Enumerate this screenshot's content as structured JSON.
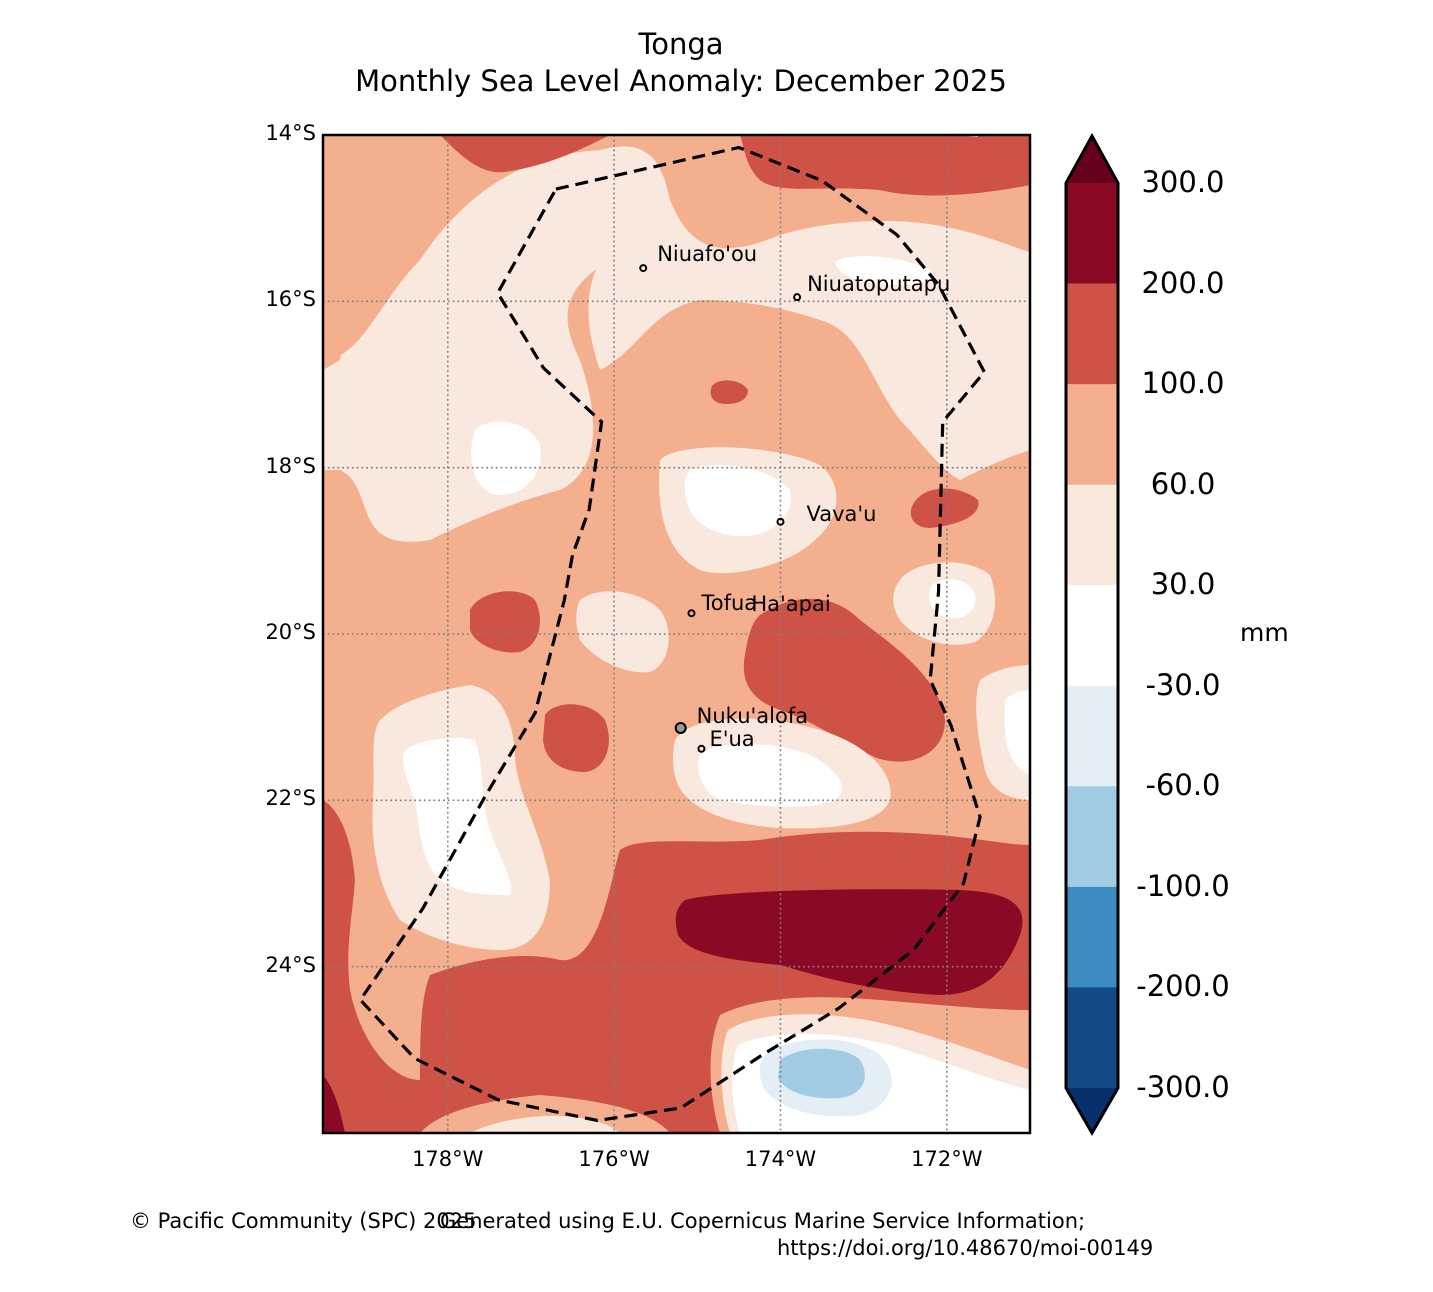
{
  "title": {
    "line1": "Tonga",
    "line2": "Monthly Sea Level Anomaly: December 2025"
  },
  "chart_data": {
    "type": "heatmap",
    "subtype": "filled-contour-map",
    "title": "Tonga — Monthly Sea Level Anomaly: December 2025",
    "extent": {
      "lon": [
        -179.5,
        -171.0
      ],
      "lat": [
        -26.0,
        -14.0
      ]
    },
    "x_ticks": [
      {
        "lon": -178,
        "label": "178°W"
      },
      {
        "lon": -176,
        "label": "176°W"
      },
      {
        "lon": -174,
        "label": "174°W"
      },
      {
        "lon": -172,
        "label": "172°W"
      }
    ],
    "y_ticks": [
      {
        "lat": -14,
        "label": "14°S"
      },
      {
        "lat": -16,
        "label": "16°S"
      },
      {
        "lat": -18,
        "label": "18°S"
      },
      {
        "lat": -20,
        "label": "20°S"
      },
      {
        "lat": -22,
        "label": "22°S"
      },
      {
        "lat": -24,
        "label": "24°S"
      }
    ],
    "gridlines": true,
    "colorbar": {
      "unit": "mm",
      "extend": "both",
      "levels": [
        -300,
        -200,
        -100,
        -60,
        -30,
        30,
        60,
        100,
        200,
        300
      ],
      "tick_labels": [
        "-300.0",
        "-200.0",
        "-100.0",
        "-60.0",
        "-30.0",
        "30.0",
        "60.0",
        "100.0",
        "200.0",
        "300.0"
      ],
      "colors": {
        "under": "#08306b",
        "bins": [
          "#144a85",
          "#3d8bc1",
          "#a0cbe2",
          "#e5eef5",
          "#ffffff",
          "#f9e8de",
          "#f4af8f",
          "#cf5246",
          "#8a0a25"
        ],
        "over": "#67001f"
      }
    },
    "regions": [
      {
        "level": "60-100",
        "desc": "background across most of domain"
      },
      {
        "level": "30-60",
        "desc": "broad band across north (15-17.5°S) and west"
      },
      {
        "level": "100-200",
        "desc": "top edge band (north of 15°S)"
      },
      {
        "level": "100-200",
        "desc": "small patch near 17.4°S 174.5°W"
      },
      {
        "level": "-30-30",
        "desc": "patch near 18°S 178°W"
      },
      {
        "level": "-30-30",
        "desc": "patch around 18.5°S 174.5°W (west of Vava'u)"
      },
      {
        "level": "100-200",
        "desc": "patch near 18.5°S 172°W"
      },
      {
        "level": "100-200",
        "desc": "blob near 19.8°S 177.2°W"
      },
      {
        "level": "100-200",
        "desc": "elongated Ha'apai blob 19.8-21.8°S, 174.5-172.5°W"
      },
      {
        "level": "-30-30",
        "desc": "patch around 21.8°S 174°W (south of Nuku'alofa)"
      },
      {
        "level": "100-200",
        "desc": "broad southern band 22.5-26°S"
      },
      {
        "level": "200-300",
        "desc": "core near 23.5°S, 175-171.1°W"
      },
      {
        "level": "-60--100",
        "desc": "cyclonic eddy core near 25.3°S 173.7°W"
      },
      {
        "level": "-30--60",
        "desc": "ring around eddy core"
      }
    ],
    "places": [
      {
        "name": "Niuafo'ou",
        "lon": -175.65,
        "lat": -15.6
      },
      {
        "name": "Niuatoputapu",
        "lon": -173.8,
        "lat": -15.95
      },
      {
        "name": "Vava'u",
        "lon": -174.0,
        "lat": -18.65
      },
      {
        "name": "Tofua",
        "lon": -175.07,
        "lat": -19.75
      },
      {
        "name": "Ha'apai",
        "lon": -174.35,
        "lat": -19.8
      },
      {
        "name": "Nuku'alofa",
        "lon": -175.2,
        "lat": -21.13
      },
      {
        "name": "E'ua",
        "lon": -174.95,
        "lat": -21.38
      }
    ],
    "eez_boundary": {
      "style": "dashed",
      "points": [
        [
          -176.7,
          -14.65
        ],
        [
          -174.5,
          -14.15
        ],
        [
          -173.5,
          -14.55
        ],
        [
          -172.6,
          -15.2
        ],
        [
          -172.1,
          -15.8
        ],
        [
          -171.55,
          -16.85
        ],
        [
          -172.05,
          -17.45
        ],
        [
          -172.1,
          -19.5
        ],
        [
          -172.2,
          -20.55
        ],
        [
          -171.95,
          -21.1
        ],
        [
          -171.6,
          -22.2
        ],
        [
          -171.8,
          -23.0
        ],
        [
          -172.4,
          -23.8
        ],
        [
          -173.3,
          -24.5
        ],
        [
          -174.2,
          -25.05
        ],
        [
          -175.2,
          -25.7
        ],
        [
          -176.2,
          -25.85
        ],
        [
          -177.4,
          -25.6
        ],
        [
          -178.4,
          -25.1
        ],
        [
          -179.05,
          -24.4
        ],
        [
          -178.3,
          -23.3
        ],
        [
          -177.55,
          -21.95
        ],
        [
          -176.95,
          -20.95
        ],
        [
          -176.6,
          -19.6
        ],
        [
          -176.5,
          -19.05
        ],
        [
          -176.3,
          -18.5
        ],
        [
          -176.15,
          -17.45
        ],
        [
          -176.85,
          -16.8
        ],
        [
          -177.4,
          -15.9
        ]
      ]
    }
  },
  "colorbar": {
    "unit_label": "mm",
    "labels": [
      "300.0",
      "200.0",
      "100.0",
      "60.0",
      "30.0",
      "-30.0",
      "-60.0",
      "-100.0",
      "-200.0",
      "-300.0"
    ]
  },
  "footer": {
    "copyright": "© Pacific Community (SPC) 2025",
    "credit_line1": "Generated using E.U. Copernicus Marine Service Information;",
    "credit_line2": "https://doi.org/10.48670/moi-00149"
  }
}
